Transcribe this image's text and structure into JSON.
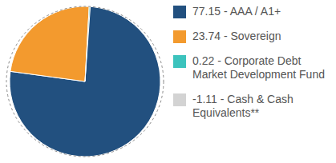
{
  "chart_data": {
    "type": "pie",
    "categories": [
      "77.15 - AAA / A1+",
      "23.74 - Sovereign",
      "0.22 - Corporate Debt Market Development Fund",
      "-1.11 - Cash & Cash Equivalents**"
    ],
    "values": [
      77.15,
      23.74,
      0.22,
      -1.11
    ],
    "colors": [
      "#22507f",
      "#f39a2e",
      "#3cc3bd",
      "#d3d3d3"
    ],
    "legend": "right",
    "data_labels": false
  }
}
